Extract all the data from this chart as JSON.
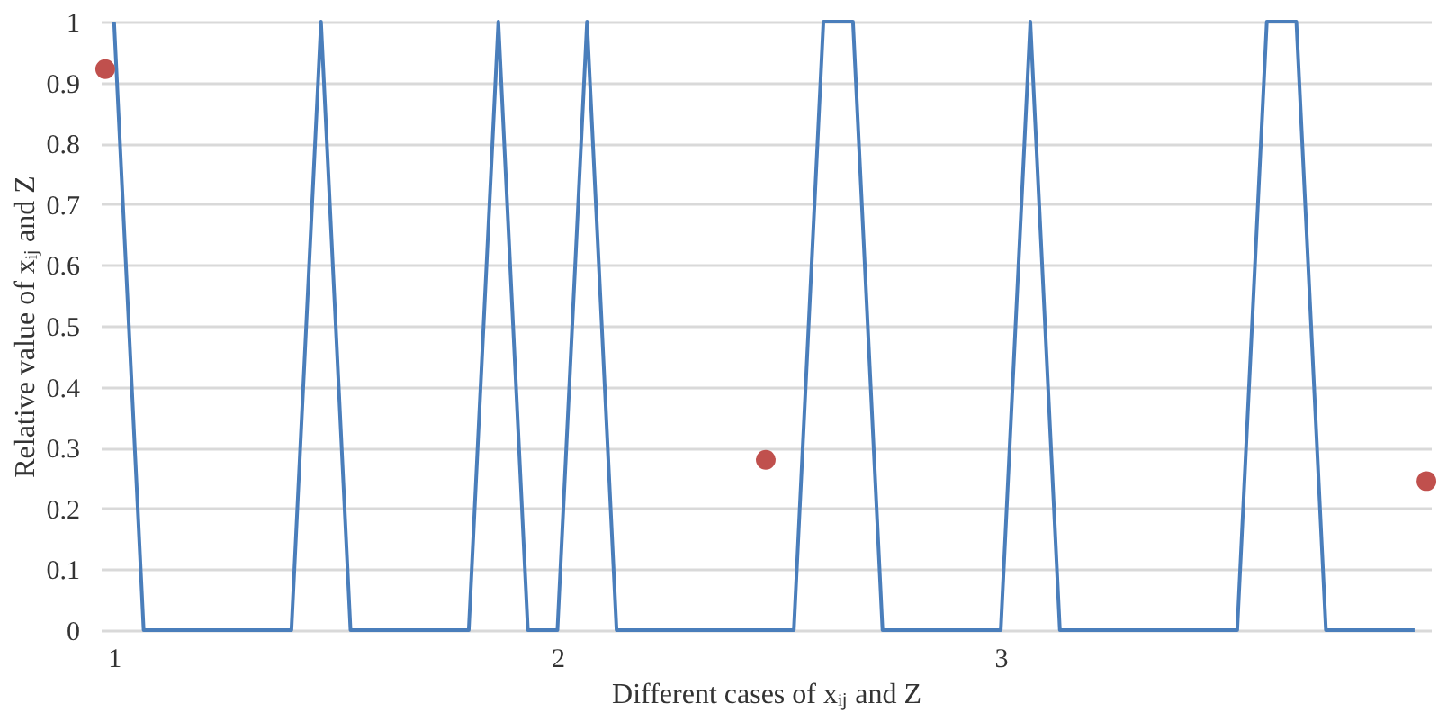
{
  "chart_data": {
    "type": "line",
    "xlabel": "Different cases of xᵢⱼ and Z",
    "ylabel": "Relative value of xᵢⱼ and Z",
    "xlim": [
      0.97,
      3.97
    ],
    "xticks": [
      1,
      2,
      3
    ],
    "ylim": [
      0,
      1
    ],
    "yticks": [
      0,
      0.1,
      0.2,
      0.3,
      0.4,
      0.5,
      0.6,
      0.7,
      0.8,
      0.9,
      1
    ],
    "grid": "y",
    "series": [
      {
        "color": "#4a7ebb",
        "marker": "none",
        "x": [
          1,
          1.0667,
          1.4,
          1.4667,
          1.5333,
          1.8,
          1.8667,
          1.9333,
          2,
          2.0667,
          2.1333,
          2.5333,
          2.6,
          2.6667,
          2.7333,
          3,
          3.0667,
          3.1333,
          3.5333,
          3.6,
          3.6667,
          3.7333,
          3.9333
        ],
        "values": [
          1,
          0,
          0,
          1,
          0,
          0,
          1,
          0,
          0,
          1,
          0,
          0,
          1,
          1,
          0,
          0,
          1,
          0,
          0,
          1,
          1,
          0,
          0
        ]
      },
      {
        "color": "#c0504d",
        "type": "scatter",
        "marker": "circle",
        "x": [
          0.98,
          2.47,
          3.96
        ],
        "values": [
          0.922,
          0.28,
          0.245
        ]
      }
    ]
  }
}
